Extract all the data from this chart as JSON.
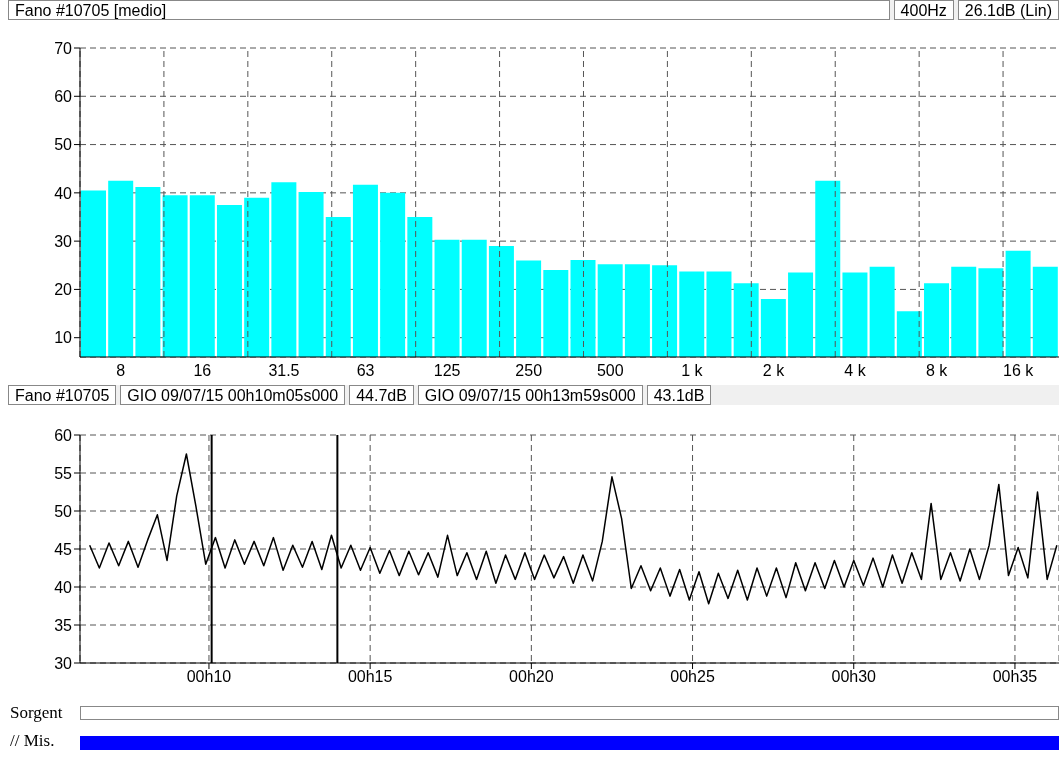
{
  "chart_data": [
    {
      "type": "bar",
      "title": "Fano #10705 [medio]",
      "annotations": [
        "400Hz",
        "26.1dB (Lin)"
      ],
      "categories": [
        null,
        "8",
        null,
        null,
        "16",
        null,
        null,
        "31.5",
        null,
        null,
        "63",
        null,
        null,
        "125",
        null,
        null,
        "250",
        null,
        null,
        "500",
        null,
        null,
        "1 k",
        null,
        null,
        "2 k",
        null,
        null,
        "4 k",
        null,
        null,
        "8 k",
        null,
        null,
        "16 k",
        null
      ],
      "values": [
        40.5,
        42.5,
        41.2,
        39.5,
        39.5,
        37.5,
        39,
        42.2,
        40.2,
        35,
        41.7,
        40,
        35,
        30.3,
        30.3,
        29,
        26,
        24,
        26.1,
        25.2,
        25.2,
        25,
        23.7,
        23.7,
        21.3,
        18,
        23.5,
        42.5,
        23.5,
        24.7,
        15.5,
        21.3,
        24.7,
        24.4,
        28,
        24.7
      ],
      "color": "#00ffff",
      "ylim": [
        6,
        70
      ],
      "yticks": [
        10,
        20,
        30,
        40,
        50,
        60,
        70
      ],
      "grid": true
    },
    {
      "type": "line",
      "title": "Fano #10705",
      "annotations": [
        "GIO 09/07/15 00h10m05s000",
        "44.7dB",
        "GIO 09/07/15 00h13m59s000",
        "43.1dB"
      ],
      "x": [
        "--07-09T00:06:18",
        "--07-09T00:06:36",
        "--07-09T00:06:54",
        "--07-09T00:07:12",
        "--07-09T00:07:30",
        "--07-09T00:07:48",
        "--07-09T00:08:06",
        "--07-09T00:08:24",
        "--07-09T00:08:42",
        "--07-09T00:09:00",
        "--07-09T00:09:18",
        "--07-09T00:09:36",
        "--07-09T00:09:54",
        "--07-09T00:10:12",
        "--07-09T00:10:30",
        "--07-09T00:10:48",
        "--07-09T00:11:06",
        "--07-09T00:11:24",
        "--07-09T00:11:42",
        "--07-09T00:12:00",
        "--07-09T00:12:18",
        "--07-09T00:12:36",
        "--07-09T00:12:54",
        "--07-09T00:13:12",
        "--07-09T00:13:30",
        "--07-09T00:13:48",
        "--07-09T00:14:06",
        "--07-09T00:14:24",
        "--07-09T00:14:42",
        "--07-09T00:15:00",
        "--07-09T00:15:18",
        "--07-09T00:15:36",
        "--07-09T00:15:54",
        "--07-09T00:16:12",
        "--07-09T00:16:30",
        "--07-09T00:16:48",
        "--07-09T00:17:06",
        "--07-09T00:17:24",
        "--07-09T00:17:42",
        "--07-09T00:18:00",
        "--07-09T00:18:18",
        "--07-09T00:18:36",
        "--07-09T00:18:54",
        "--07-09T00:19:12",
        "--07-09T00:19:30",
        "--07-09T00:19:48",
        "--07-09T00:20:06",
        "--07-09T00:20:24",
        "--07-09T00:20:42",
        "--07-09T00:21:00",
        "--07-09T00:21:18",
        "--07-09T00:21:36",
        "--07-09T00:21:54",
        "--07-09T00:22:12",
        "--07-09T00:22:30",
        "--07-09T00:22:48",
        "--07-09T00:23:06",
        "--07-09T00:23:24",
        "--07-09T00:23:42",
        "--07-09T00:24:00",
        "--07-09T00:24:18",
        "--07-09T00:24:36",
        "--07-09T00:24:54",
        "--07-09T00:25:12",
        "--07-09T00:25:30",
        "--07-09T00:25:48",
        "--07-09T00:26:06",
        "--07-09T00:26:24",
        "--07-09T00:26:42",
        "--07-09T00:27:00",
        "--07-09T00:27:18",
        "--07-09T00:27:36",
        "--07-09T00:27:54",
        "--07-09T00:28:12",
        "--07-09T00:28:30",
        "--07-09T00:28:48",
        "--07-09T00:29:06",
        "--07-09T00:29:24",
        "--07-09T00:29:42",
        "--07-09T00:30:00",
        "--07-09T00:30:18",
        "--07-09T00:30:36",
        "--07-09T00:30:54",
        "--07-09T00:31:12",
        "--07-09T00:31:30",
        "--07-09T00:31:48",
        "--07-09T00:32:06",
        "--07-09T00:32:24",
        "--07-09T00:32:42",
        "--07-09T00:33:00",
        "--07-09T00:33:18",
        "--07-09T00:33:36",
        "--07-09T00:33:54",
        "--07-09T00:34:12",
        "--07-09T00:34:30",
        "--07-09T00:34:48",
        "--07-09T00:35:06",
        "--07-09T00:35:24",
        "--07-09T00:35:42",
        "--07-09T00:36:00",
        "--07-09T00:36:18"
      ],
      "series": [
        {
          "color": "#000000",
          "values": [
            45.5,
            42.5,
            45.8,
            42.8,
            46,
            42.6,
            46.2,
            49.5,
            43.5,
            52,
            57.5,
            50.5,
            43,
            46.5,
            42.5,
            46.2,
            43,
            46,
            42.8,
            46.5,
            42.2,
            45.5,
            42.6,
            46,
            42.3,
            46.8,
            42.5,
            45.5,
            42.2,
            45.2,
            41.8,
            44.8,
            41.5,
            44.7,
            41.6,
            44.5,
            41.3,
            46.8,
            41.5,
            44.5,
            41,
            44.7,
            40.5,
            44.2,
            41,
            44.5,
            41,
            44.2,
            41.2,
            44,
            40.5,
            44.2,
            40.8,
            46,
            54.5,
            49,
            39.8,
            42.8,
            39.5,
            42.5,
            38.8,
            42.3,
            38.3,
            42,
            37.8,
            41.8,
            38.5,
            42.2,
            38.3,
            42.5,
            38.8,
            42.5,
            38.6,
            43.2,
            39.5,
            43.2,
            39.8,
            43.5,
            40,
            43.5,
            40.2,
            43.8,
            40,
            44.2,
            40.5,
            44.5,
            41,
            51,
            41,
            44.5,
            40.8,
            45,
            41,
            45.5,
            53.5,
            41.5,
            45.2,
            41.2,
            52.5,
            41,
            45.5
          ]
        }
      ],
      "xlim": [
        "--07-09T00:06",
        "--07-09T00:36:22"
      ],
      "xticks": [
        {
          "value": "--07-09T00:10",
          "label": "00h10"
        },
        {
          "value": "--07-09T00:15",
          "label": "00h15"
        },
        {
          "value": "--07-09T00:20",
          "label": "00h20"
        },
        {
          "value": "--07-09T00:25",
          "label": "00h25"
        },
        {
          "value": "--07-09T00:30",
          "label": "00h30"
        },
        {
          "value": "--07-09T00:35",
          "label": "00h35"
        }
      ],
      "ylim": [
        30,
        60
      ],
      "yticks": [
        30,
        35,
        40,
        45,
        50,
        55,
        60
      ],
      "grid": true,
      "marker": "none",
      "line_style": "solid",
      "ref_lines": [
        {
          "axis": "x",
          "value": "--07-09T00:10:05",
          "color": "#000000"
        },
        {
          "axis": "x",
          "value": "--07-09T00:13:59",
          "color": "#000000"
        }
      ]
    },
    {
      "type": "other",
      "annotations": [
        "Sorgent",
        "// Mis."
      ]
    }
  ]
}
